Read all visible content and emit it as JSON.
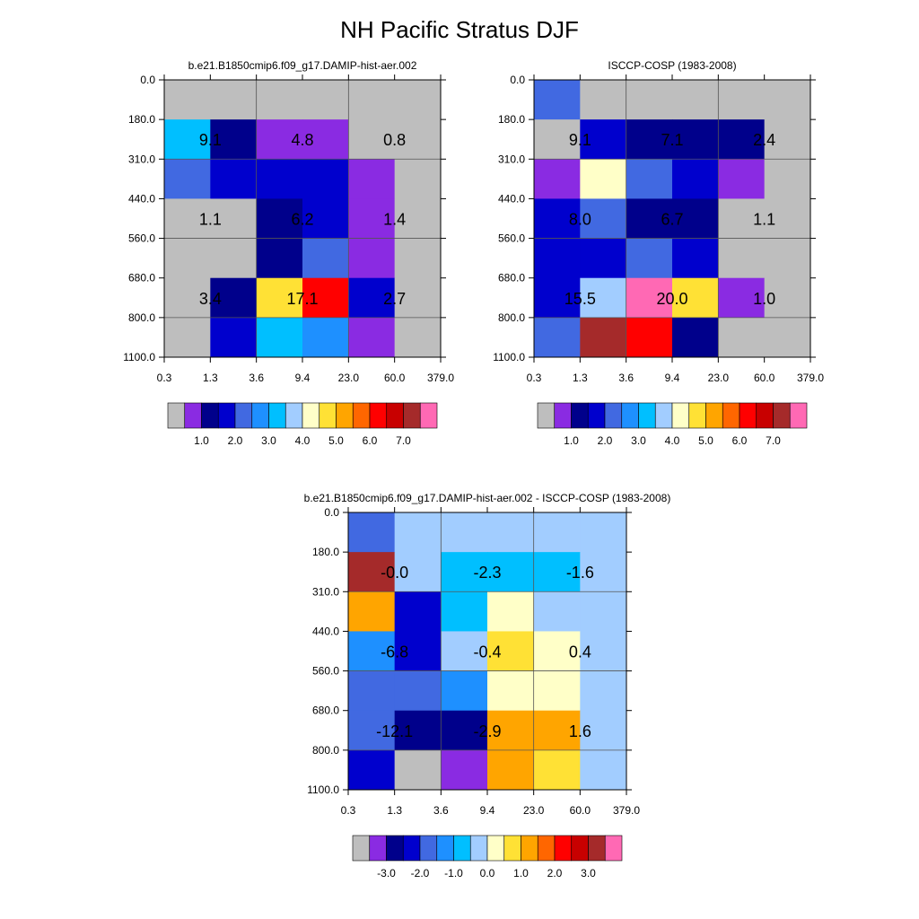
{
  "title": "NH Pacific Stratus DJF",
  "palettes": {
    "abs": [
      "#BEBEBE",
      "#8A2BE2",
      "#00008B",
      "#0000CD",
      "#4169E1",
      "#1E90FF",
      "#00BFFF",
      "#A2CDFF",
      "#FFFFC8",
      "#FFE135",
      "#FFA500",
      "#FF6600",
      "#FF0000",
      "#C80000",
      "#A52A2A",
      "#FF69B4"
    ],
    "diff": [
      "#BEBEBE",
      "#8A2BE2",
      "#00008B",
      "#0000CD",
      "#4169E1",
      "#1E90FF",
      "#00BFFF",
      "#A2CDFF",
      "#FFFFC8",
      "#FFE135",
      "#FFA500",
      "#FF6600",
      "#FF0000",
      "#C80000",
      "#A52A2A",
      "#FF69B4"
    ]
  },
  "chart_data": [
    {
      "id": "model",
      "type": "heatmap",
      "title": "b.e21.B1850cmip6.f09_g17.DAMIP-hist-aer.002",
      "x_ticks": [
        "0.3",
        "1.3",
        "3.6",
        "9.4",
        "23.0",
        "60.0",
        "379.0"
      ],
      "y_ticks": [
        "0.0",
        "180.0",
        "310.0",
        "440.0",
        "560.0",
        "680.0",
        "800.0",
        "1100.0"
      ],
      "cells": [
        [
          0,
          0,
          0,
          0,
          0,
          0
        ],
        [
          6,
          2,
          1,
          1,
          0,
          0
        ],
        [
          4,
          3,
          3,
          3,
          1,
          0
        ],
        [
          0,
          0,
          2,
          3,
          1,
          0
        ],
        [
          0,
          0,
          2,
          4,
          1,
          0
        ],
        [
          0,
          2,
          9,
          12,
          3,
          0
        ],
        [
          0,
          3,
          6,
          5,
          1,
          0
        ]
      ],
      "labels": [
        {
          "text": "9.1",
          "col": 0.5,
          "row": 1.5
        },
        {
          "text": "4.8",
          "col": 2.5,
          "row": 1.5
        },
        {
          "text": "0.8",
          "col": 4.5,
          "row": 1.5
        },
        {
          "text": "1.1",
          "col": 0.5,
          "row": 3.5
        },
        {
          "text": "6.2",
          "col": 2.5,
          "row": 3.5
        },
        {
          "text": "1.4",
          "col": 4.5,
          "row": 3.5
        },
        {
          "text": "3.4",
          "col": 0.5,
          "row": 5.5
        },
        {
          "text": "17.1",
          "col": 2.5,
          "row": 5.5
        },
        {
          "text": "2.7",
          "col": 4.5,
          "row": 5.5
        }
      ],
      "colorbar": {
        "palette": "abs",
        "tick_labels": [
          "1.0",
          "2.0",
          "3.0",
          "4.0",
          "5.0",
          "6.0",
          "7.0"
        ]
      }
    },
    {
      "id": "obs",
      "type": "heatmap",
      "title": "ISCCP-COSP (1983-2008)",
      "x_ticks": [
        "0.3",
        "1.3",
        "3.6",
        "9.4",
        "23.0",
        "60.0",
        "379.0"
      ],
      "y_ticks": [
        "0.0",
        "180.0",
        "310.0",
        "440.0",
        "560.0",
        "680.0",
        "800.0",
        "1100.0"
      ],
      "cells": [
        [
          4,
          0,
          0,
          0,
          0,
          0
        ],
        [
          0,
          3,
          2,
          2,
          2,
          0
        ],
        [
          1,
          8,
          4,
          3,
          1,
          0
        ],
        [
          3,
          4,
          2,
          2,
          0,
          0
        ],
        [
          3,
          3,
          4,
          3,
          0,
          0
        ],
        [
          3,
          7,
          15,
          9,
          1,
          0
        ],
        [
          4,
          14,
          12,
          2,
          0,
          0
        ]
      ],
      "labels": [
        {
          "text": "9.1",
          "col": 0.5,
          "row": 1.5
        },
        {
          "text": "7.1",
          "col": 2.5,
          "row": 1.5
        },
        {
          "text": "2.4",
          "col": 4.5,
          "row": 1.5
        },
        {
          "text": "8.0",
          "col": 0.5,
          "row": 3.5
        },
        {
          "text": "6.7",
          "col": 2.5,
          "row": 3.5
        },
        {
          "text": "1.1",
          "col": 4.5,
          "row": 3.5
        },
        {
          "text": "15.5",
          "col": 0.5,
          "row": 5.5
        },
        {
          "text": "20.0",
          "col": 2.5,
          "row": 5.5
        },
        {
          "text": "1.0",
          "col": 4.5,
          "row": 5.5
        }
      ],
      "colorbar": {
        "palette": "abs",
        "tick_labels": [
          "1.0",
          "2.0",
          "3.0",
          "4.0",
          "5.0",
          "6.0",
          "7.0"
        ]
      }
    },
    {
      "id": "diff",
      "type": "heatmap",
      "title": "b.e21.B1850cmip6.f09_g17.DAMIP-hist-aer.002 - ISCCP-COSP (1983-2008)",
      "x_ticks": [
        "0.3",
        "1.3",
        "3.6",
        "9.4",
        "23.0",
        "60.0",
        "379.0"
      ],
      "y_ticks": [
        "0.0",
        "180.0",
        "310.0",
        "440.0",
        "560.0",
        "680.0",
        "800.0",
        "1100.0"
      ],
      "cells": [
        [
          4,
          7,
          7,
          7,
          7,
          7
        ],
        [
          14,
          7,
          6,
          6,
          6,
          7
        ],
        [
          10,
          3,
          6,
          8,
          7,
          7
        ],
        [
          5,
          3,
          7,
          9,
          8,
          7
        ],
        [
          4,
          4,
          5,
          8,
          8,
          7
        ],
        [
          4,
          2,
          2,
          10,
          10,
          7
        ],
        [
          3,
          0,
          1,
          10,
          9,
          7
        ]
      ],
      "labels": [
        {
          "text": "-0.0",
          "col": 0.5,
          "row": 1.5
        },
        {
          "text": "-2.3",
          "col": 2.5,
          "row": 1.5
        },
        {
          "text": "-1.6",
          "col": 4.5,
          "row": 1.5
        },
        {
          "text": "-6.8",
          "col": 0.5,
          "row": 3.5
        },
        {
          "text": "-0.4",
          "col": 2.5,
          "row": 3.5
        },
        {
          "text": "0.4",
          "col": 4.5,
          "row": 3.5
        },
        {
          "text": "-12.1",
          "col": 0.5,
          "row": 5.5
        },
        {
          "text": "-2.9",
          "col": 2.5,
          "row": 5.5
        },
        {
          "text": "1.6",
          "col": 4.5,
          "row": 5.5
        }
      ],
      "colorbar": {
        "palette": "diff",
        "tick_labels": [
          "-3.0",
          "-2.0",
          "-1.0",
          "0.0",
          "1.0",
          "2.0",
          "3.0"
        ]
      }
    }
  ]
}
